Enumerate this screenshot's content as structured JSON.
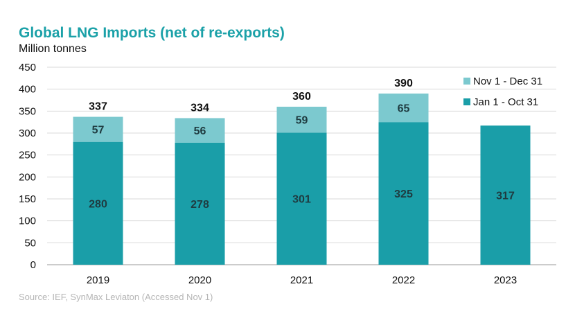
{
  "chart_data": {
    "type": "bar",
    "stacked": true,
    "title": "Global LNG Imports (net of re-exports)",
    "ylabel": "Million tonnes",
    "source": "Source: IEF, SynMax Leviaton  (Accessed Nov 1)",
    "categories": [
      "2019",
      "2020",
      "2021",
      "2022",
      "2023"
    ],
    "ylim": [
      0,
      450
    ],
    "yticks": [
      "0",
      "50",
      "100",
      "150",
      "200",
      "250",
      "300",
      "350",
      "400",
      "450"
    ],
    "grid": true,
    "legend_position": "top-right",
    "series": [
      {
        "name": "Jan 1 - Oct 31",
        "color": "#1a9ea8",
        "values": [
          280,
          278,
          301,
          325,
          317
        ]
      },
      {
        "name": "Nov 1 - Dec 31",
        "color": "#7cc9cf",
        "values": [
          57,
          56,
          59,
          65,
          null
        ]
      }
    ],
    "totals": [
      337,
      334,
      360,
      390,
      null
    ]
  }
}
